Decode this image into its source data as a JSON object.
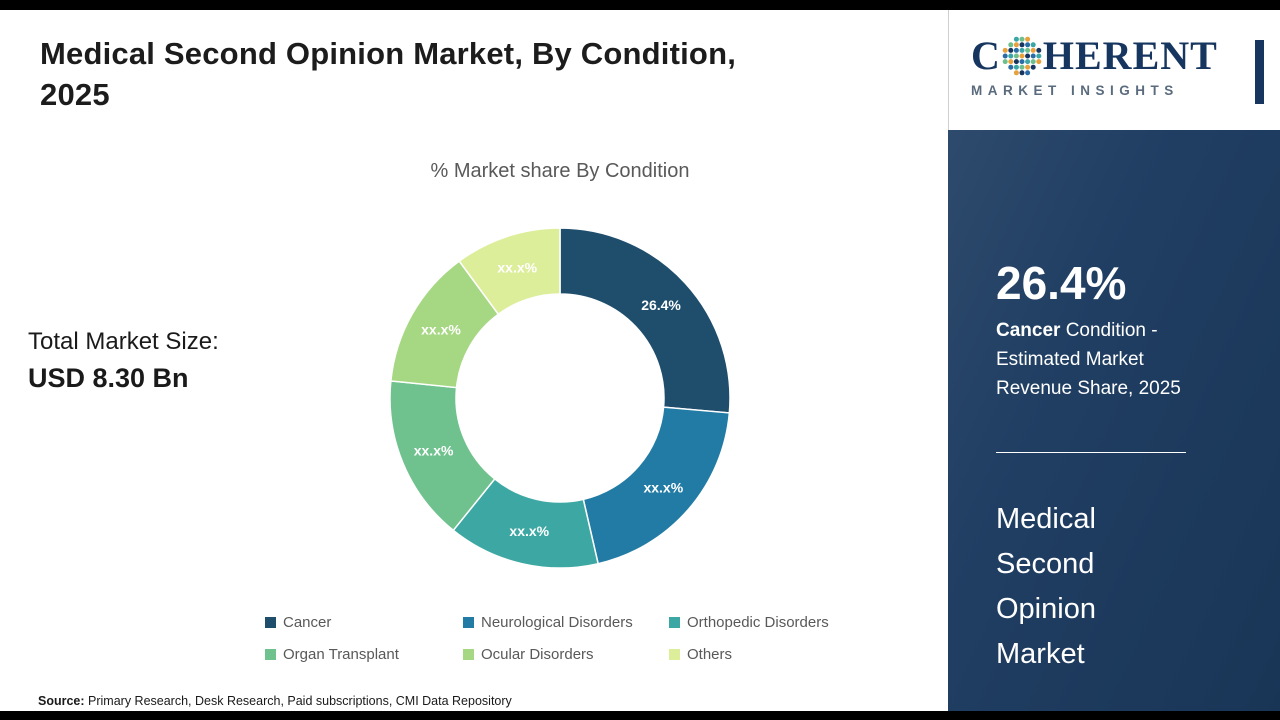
{
  "header": {
    "title_line1": "Medical Second Opinion Market, By Condition,",
    "title_line2": "2025"
  },
  "logo": {
    "brand_c": "C",
    "brand_rest": "HERENT",
    "tagline": "MARKET INSIGHTS"
  },
  "left": {
    "total_label": "Total Market Size:",
    "total_value": "USD 8.30 Bn"
  },
  "chart_data": {
    "type": "pie",
    "donut": true,
    "title": "% Market share By Condition",
    "categories": [
      "Cancer",
      "Neurological Disorders",
      "Orthopedic Disorders",
      "Organ Transplant",
      "Ocular Disorders",
      "Others"
    ],
    "values": [
      26.4,
      20.0,
      14.4,
      15.8,
      13.3,
      10.1
    ],
    "labels": [
      "26.4%",
      "xx.x%",
      "xx.x%",
      "xx.x%",
      "xx.x%",
      "xx.x%"
    ],
    "colors": [
      "#1f4e6d",
      "#217ba4",
      "#3da8a3",
      "#6fc28d",
      "#a6d783",
      "#ddee9b"
    ],
    "legend_position": "bottom",
    "note": "Only the Cancer share (26.4%) is disclosed; other segment values are masked as xx.x% and estimated from arc angles."
  },
  "panel": {
    "stat_value": "26.4%",
    "stat_bold": "Cancer",
    "stat_rest": " Condition - Estimated Market Revenue Share, 2025",
    "market_name": "Medical Second Opinion Market"
  },
  "footer": {
    "source_label": "Source:",
    "source_text": " Primary Research, Desk Research, Paid subscriptions, CMI Data Repository"
  }
}
